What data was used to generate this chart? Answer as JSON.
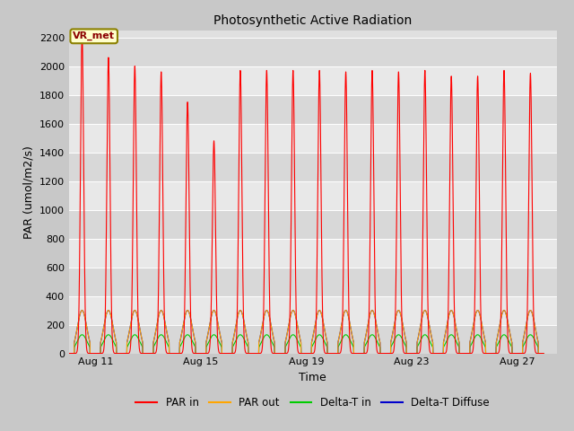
{
  "title": "Photosynthetic Active Radiation",
  "xlabel": "Time",
  "ylabel": "PAR (umol/m2/s)",
  "ylim": [
    0,
    2250
  ],
  "yticks": [
    0,
    200,
    400,
    600,
    800,
    1000,
    1200,
    1400,
    1600,
    1800,
    2000,
    2200
  ],
  "fig_bg_color": "#c8c8c8",
  "plot_bg_color": "#e0e0e0",
  "annotation_text": "VR_met",
  "annotation_color": "#8B0000",
  "annotation_bg": "#ffffcc",
  "annotation_border": "#8B8000",
  "legend_entries": [
    "PAR in",
    "PAR out",
    "Delta-T in",
    "Delta-T Diffuse"
  ],
  "line_colors": {
    "PAR_in": "#ff0000",
    "PAR_out": "#ffa500",
    "Delta_T_in": "#00cc00",
    "Delta_T_Diffuse": "#0000cc"
  },
  "xtick_positions": [
    11,
    15,
    19,
    23,
    27
  ],
  "xtick_labels": [
    "Aug 11",
    "Aug 15",
    "Aug 19",
    "Aug 23",
    "Aug 27"
  ],
  "xlim": [
    10,
    28.5
  ],
  "start_day": 10,
  "n_days": 18,
  "par_in_peaks": [
    2220,
    2060,
    2000,
    1960,
    1750,
    1480,
    1970,
    1970,
    1970,
    1970,
    1960,
    1970,
    1960,
    1970,
    1930,
    1930,
    1970,
    1950
  ],
  "par_out_max": 300,
  "delta_t_in_max": 130,
  "delta_t_diffuse_max": 300,
  "grid_color": "#ffffff",
  "alt_band_color": "#d4d4d4"
}
